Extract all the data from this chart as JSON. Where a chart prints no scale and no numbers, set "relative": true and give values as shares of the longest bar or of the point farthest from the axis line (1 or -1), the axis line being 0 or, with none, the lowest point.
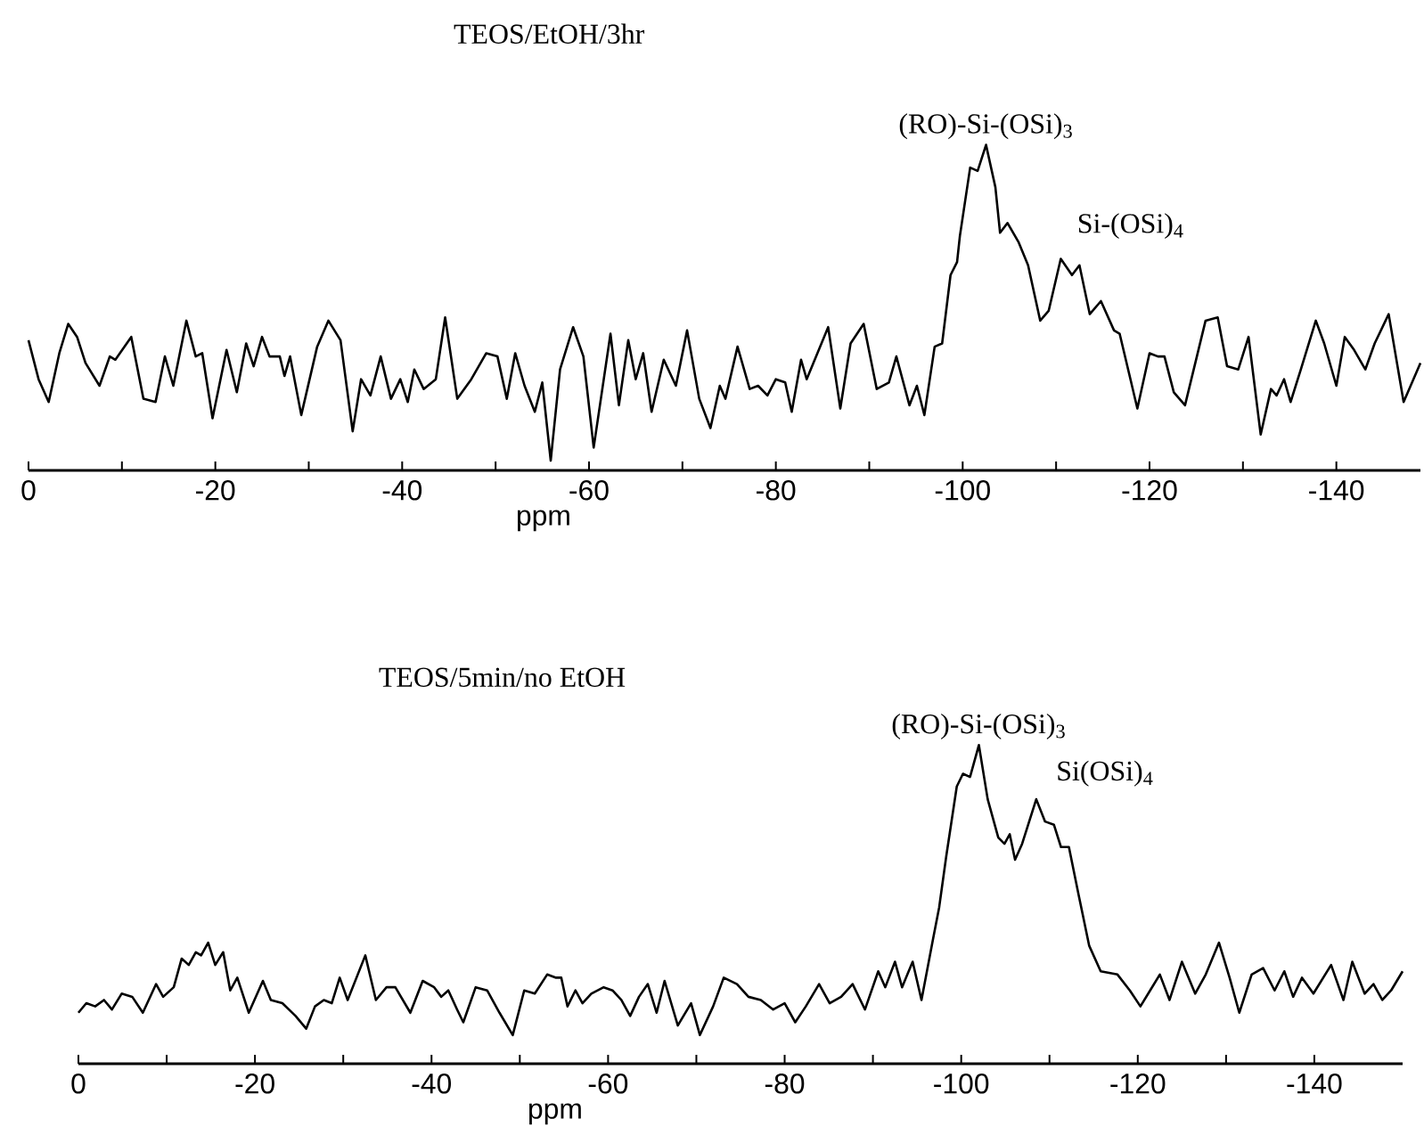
{
  "chart_data": [
    {
      "type": "line",
      "title": "TEOS/EtOH/3hr",
      "xlabel": "ppm",
      "relative": true,
      "xlim": [
        0,
        -149
      ],
      "xticks": [
        0,
        {
          "value": -10,
          "label": null
        },
        -20,
        {
          "value": -30,
          "label": null
        },
        -40,
        {
          "value": -50,
          "label": null
        },
        -60,
        {
          "value": -70,
          "label": null
        },
        -80,
        {
          "value": -90,
          "label": null
        },
        -100,
        {
          "value": -110,
          "label": null
        },
        -120,
        {
          "value": -130,
          "label": null
        },
        -140
      ],
      "annotations": [
        {
          "text": "(RO)-Si-(OSi)$_{3}$",
          "x": -102.5,
          "y": 1.0
        },
        {
          "text": "Si-(OSi)$_{4}$",
          "x": -110.5,
          "y": 0.65
        }
      ],
      "series": [
        {
          "color": "#000000",
          "x": [
            0,
            -1.08,
            -2.16,
            -3.3,
            -4.25,
            -5.2,
            -6.1,
            -7.6,
            -8.7,
            -9.3,
            -11.0,
            -12.3,
            -13.6,
            -14.6,
            -15.5,
            -16.9,
            -17.9,
            -18.6,
            -19.7,
            -21.2,
            -22.3,
            -23.3,
            -24.1,
            -25.0,
            -25.8,
            -26.9,
            -27.4,
            -28.0,
            -29.2,
            -30.9,
            -32.1,
            -33.4,
            -34.7,
            -35.6,
            -36.6,
            -37.7,
            -38.8,
            -39.8,
            -40.6,
            -41.3,
            -42.3,
            -43.6,
            -44.6,
            -45.9,
            -47.4,
            -49.0,
            -50.2,
            -51.2,
            -52.1,
            -53.1,
            -54.2,
            -55.0,
            -55.9,
            -56.9,
            -58.3,
            -59.4,
            -60.5,
            -62.3,
            -63.2,
            -64.2,
            -65.0,
            -65.8,
            -66.7,
            -68.0,
            -69.3,
            -70.5,
            -71.8,
            -73.0,
            -74.0,
            -74.6,
            -75.9,
            -77.2,
            -78.1,
            -79.1,
            -80.0,
            -81.0,
            -81.7,
            -82.7,
            -83.3,
            -85.6,
            -86.9,
            -88.0,
            -89.4,
            -90.8,
            -92.1,
            -92.9,
            -94.3,
            -95.1,
            -95.9,
            -97.0,
            -97.8,
            -98.7,
            -99.4,
            -99.7,
            -100.8,
            -101.6,
            -102.5,
            -103.5,
            -104.0,
            -104.8,
            -106.0,
            -107.0,
            -108.3,
            -109.2,
            -110.5,
            -111.7,
            -112.5,
            -113.6,
            -114.8,
            -116.2,
            -116.8,
            -118.7,
            -120.0,
            -120.9,
            -121.6,
            -122.6,
            -123.8,
            -126.0,
            -127.3,
            -128.3,
            -129.5,
            -130.6,
            -131.9,
            -133.0,
            -133.6,
            -134.4,
            -135.1,
            -136.2,
            -137.8,
            -138.7,
            -140.0,
            -140.9,
            -141.9,
            -143.1,
            -144.1,
            -145.6,
            -147.2,
            -149.0
          ],
          "values": [
            0.4,
            0.28,
            0.21,
            0.36,
            0.45,
            0.41,
            0.33,
            0.26,
            0.35,
            0.34,
            0.41,
            0.22,
            0.21,
            0.35,
            0.26,
            0.46,
            0.35,
            0.36,
            0.16,
            0.37,
            0.24,
            0.39,
            0.32,
            0.41,
            0.35,
            0.35,
            0.29,
            0.35,
            0.17,
            0.38,
            0.46,
            0.4,
            0.12,
            0.28,
            0.23,
            0.35,
            0.22,
            0.28,
            0.21,
            0.31,
            0.25,
            0.28,
            0.47,
            0.22,
            0.28,
            0.36,
            0.35,
            0.22,
            0.36,
            0.26,
            0.18,
            0.27,
            0.03,
            0.31,
            0.44,
            0.35,
            0.07,
            0.42,
            0.2,
            0.4,
            0.28,
            0.36,
            0.18,
            0.34,
            0.26,
            0.43,
            0.22,
            0.13,
            0.26,
            0.22,
            0.38,
            0.25,
            0.26,
            0.23,
            0.28,
            0.27,
            0.18,
            0.34,
            0.28,
            0.44,
            0.19,
            0.39,
            0.45,
            0.25,
            0.27,
            0.35,
            0.2,
            0.26,
            0.17,
            0.38,
            0.39,
            0.6,
            0.64,
            0.72,
            0.93,
            0.92,
            1.0,
            0.87,
            0.73,
            0.76,
            0.7,
            0.63,
            0.46,
            0.49,
            0.65,
            0.6,
            0.63,
            0.48,
            0.52,
            0.43,
            0.42,
            0.19,
            0.36,
            0.35,
            0.35,
            0.24,
            0.2,
            0.46,
            0.47,
            0.32,
            0.31,
            0.41,
            0.11,
            0.25,
            0.23,
            0.28,
            0.21,
            0.31,
            0.46,
            0.39,
            0.26,
            0.41,
            0.37,
            0.31,
            0.39,
            0.48,
            0.21,
            0.33
          ]
        }
      ]
    },
    {
      "type": "line",
      "title": "TEOS/5min/no EtOH",
      "xlabel": "ppm",
      "relative": true,
      "xlim": [
        0,
        -150
      ],
      "xticks": [
        0,
        {
          "value": -10,
          "label": null
        },
        -20,
        {
          "value": -30,
          "label": null
        },
        -40,
        {
          "value": -50,
          "label": null
        },
        -60,
        {
          "value": -70,
          "label": null
        },
        -80,
        {
          "value": -90,
          "label": null
        },
        -100,
        {
          "value": -110,
          "label": null
        },
        -120,
        {
          "value": -130,
          "label": null
        },
        -140
      ],
      "annotations": [
        {
          "text": "(RO)-Si-(OSi)$_{3}$",
          "x": -102.0,
          "y": 1.0
        },
        {
          "text": "Si(OSi)$_{4}$",
          "x": -108.5,
          "y": 0.83
        }
      ],
      "series": [
        {
          "color": "#000000",
          "x": [
            0,
            -0.9,
            -1.9,
            -2.9,
            -3.8,
            -4.9,
            -6.1,
            -7.3,
            -8.8,
            -9.6,
            -10.8,
            -11.7,
            -12.5,
            -13.3,
            -13.9,
            -14.7,
            -15.5,
            -16.4,
            -17.2,
            -18.0,
            -19.3,
            -20.9,
            -21.8,
            -23.1,
            -24.6,
            -25.8,
            -26.8,
            -27.8,
            -28.7,
            -29.6,
            -30.5,
            -32.5,
            -33.7,
            -34.9,
            -35.9,
            -37.6,
            -39.0,
            -40.3,
            -41.1,
            -41.9,
            -42.9,
            -43.6,
            -45.0,
            -46.3,
            -47.7,
            -49.2,
            -50.5,
            -51.7,
            -53.1,
            -54.1,
            -54.7,
            -55.4,
            -56.3,
            -57.1,
            -58.1,
            -59.5,
            -60.5,
            -61.5,
            -62.5,
            -63.5,
            -64.5,
            -65.5,
            -66.4,
            -67.9,
            -69.4,
            -70.4,
            -71.9,
            -73.1,
            -74.6,
            -75.9,
            -77.3,
            -78.7,
            -80.0,
            -81.2,
            -82.4,
            -83.9,
            -85.1,
            -86.4,
            -87.7,
            -89.1,
            -90.6,
            -91.4,
            -92.5,
            -93.3,
            -94.5,
            -95.5,
            -96.8,
            -97.5,
            -98.3,
            -99.5,
            -100.2,
            -101.0,
            -102.0,
            -103.0,
            -104.2,
            -104.9,
            -105.5,
            -106.1,
            -106.9,
            -108.5,
            -109.5,
            -110.5,
            -111.3,
            -112.2,
            -113.3,
            -114.5,
            -115.8,
            -117.7,
            -119.1,
            -120.3,
            -121.4,
            -122.5,
            -123.6,
            -125.0,
            -126.5,
            -127.7,
            -129.2,
            -130.4,
            -131.5,
            -132.9,
            -134.2,
            -135.5,
            -136.6,
            -137.6,
            -138.6,
            -139.9,
            -141.9,
            -143.3,
            -144.3,
            -145.7,
            -146.7,
            -147.7,
            -148.7,
            -150.0
          ],
          "values": [
            0.16,
            0.19,
            0.18,
            0.2,
            0.17,
            0.22,
            0.21,
            0.16,
            0.25,
            0.21,
            0.24,
            0.33,
            0.31,
            0.35,
            0.34,
            0.38,
            0.31,
            0.35,
            0.23,
            0.27,
            0.16,
            0.26,
            0.2,
            0.19,
            0.15,
            0.11,
            0.18,
            0.2,
            0.19,
            0.27,
            0.2,
            0.34,
            0.2,
            0.24,
            0.24,
            0.16,
            0.26,
            0.24,
            0.21,
            0.23,
            0.17,
            0.13,
            0.24,
            0.23,
            0.16,
            0.09,
            0.23,
            0.22,
            0.28,
            0.27,
            0.27,
            0.18,
            0.23,
            0.19,
            0.22,
            0.24,
            0.23,
            0.2,
            0.15,
            0.21,
            0.25,
            0.16,
            0.26,
            0.12,
            0.19,
            0.09,
            0.18,
            0.27,
            0.25,
            0.21,
            0.2,
            0.17,
            0.19,
            0.13,
            0.18,
            0.25,
            0.19,
            0.21,
            0.25,
            0.17,
            0.29,
            0.24,
            0.32,
            0.24,
            0.32,
            0.2,
            0.39,
            0.49,
            0.65,
            0.87,
            0.91,
            0.9,
            1.0,
            0.83,
            0.71,
            0.69,
            0.72,
            0.64,
            0.69,
            0.83,
            0.76,
            0.75,
            0.68,
            0.68,
            0.53,
            0.37,
            0.29,
            0.28,
            0.23,
            0.18,
            0.23,
            0.28,
            0.2,
            0.32,
            0.22,
            0.28,
            0.38,
            0.27,
            0.16,
            0.28,
            0.3,
            0.23,
            0.29,
            0.21,
            0.27,
            0.22,
            0.31,
            0.2,
            0.32,
            0.22,
            0.25,
            0.2,
            0.23,
            0.29
          ]
        }
      ]
    }
  ]
}
